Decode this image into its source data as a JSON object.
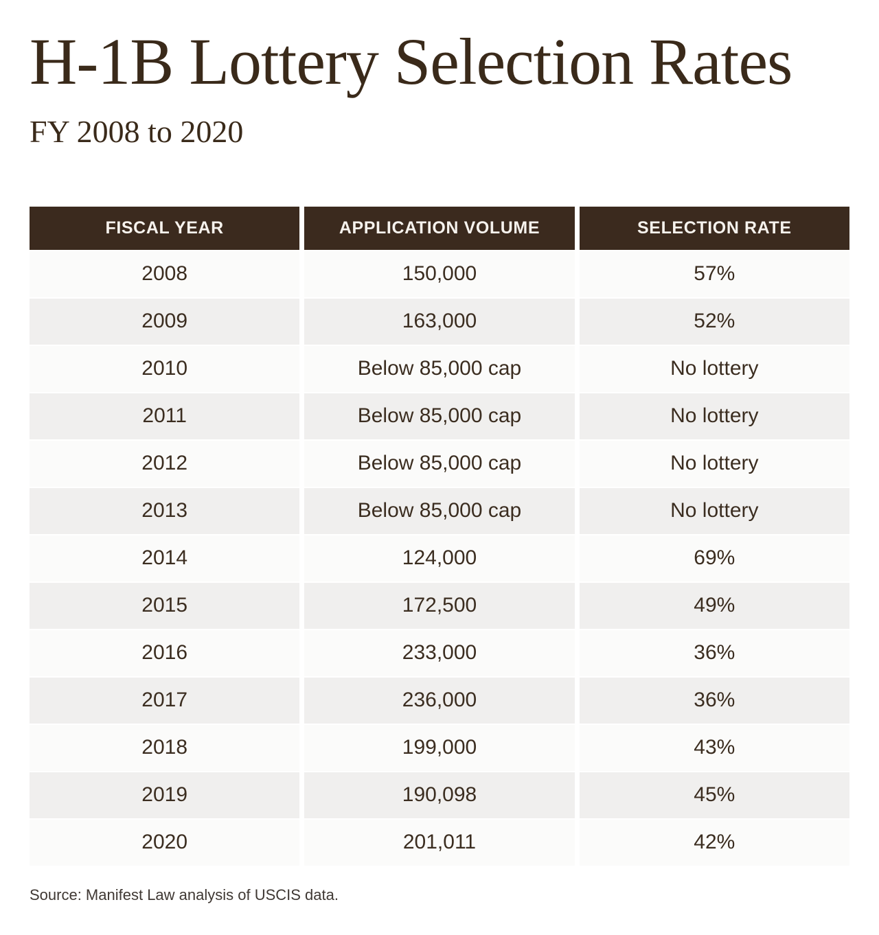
{
  "page": {
    "title": "H-1B Lottery Selection Rates",
    "subtitle": "FY 2008 to 2020",
    "source_note": "Source: Manifest Law analysis of USCIS data."
  },
  "colors": {
    "accent_dark_brown": "#3b2a1e",
    "header_text": "#f6f2ed",
    "title_text": "#3a2a1a",
    "cell_text": "#3b2d20",
    "row_light": "#fbfbfa",
    "row_shaded": "#f0efee",
    "background": "#ffffff"
  },
  "chart_data": {
    "type": "table",
    "title": "H-1B Lottery Selection Rates",
    "subtitle": "FY 2008 to 2020",
    "columns": [
      "FISCAL YEAR",
      "APPLICATION VOLUME",
      "SELECTION RATE"
    ],
    "rows": [
      {
        "year": "2008",
        "volume": "150,000",
        "rate": "57%"
      },
      {
        "year": "2009",
        "volume": "163,000",
        "rate": "52%"
      },
      {
        "year": "2010",
        "volume": "Below 85,000 cap",
        "rate": "No lottery"
      },
      {
        "year": "2011",
        "volume": "Below 85,000 cap",
        "rate": "No lottery"
      },
      {
        "year": "2012",
        "volume": "Below 85,000 cap",
        "rate": "No lottery"
      },
      {
        "year": "2013",
        "volume": "Below 85,000 cap",
        "rate": "No lottery"
      },
      {
        "year": "2014",
        "volume": "124,000",
        "rate": "69%"
      },
      {
        "year": "2015",
        "volume": "172,500",
        "rate": "49%"
      },
      {
        "year": "2016",
        "volume": "233,000",
        "rate": "36%"
      },
      {
        "year": "2017",
        "volume": "236,000",
        "rate": "36%"
      },
      {
        "year": "2018",
        "volume": "199,000",
        "rate": "43%"
      },
      {
        "year": "2019",
        "volume": "190,098",
        "rate": "45%"
      },
      {
        "year": "2020",
        "volume": "201,011",
        "rate": "42%"
      }
    ],
    "source": "Source: Manifest Law analysis of USCIS data.",
    "layout": {
      "grid": "off",
      "legend": "none"
    }
  }
}
